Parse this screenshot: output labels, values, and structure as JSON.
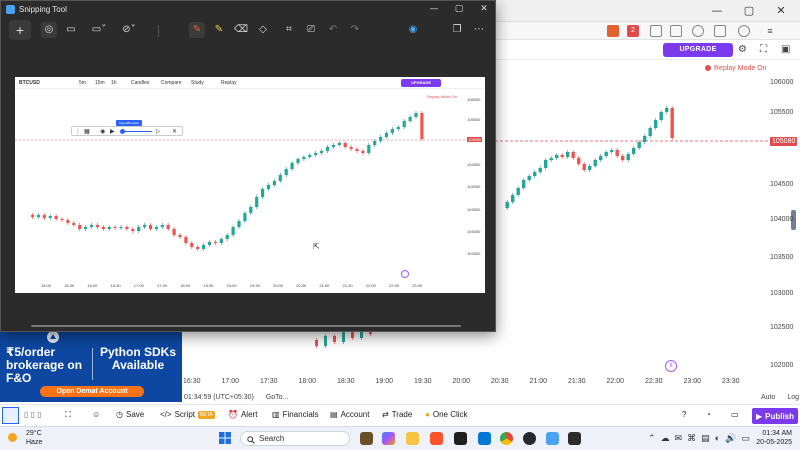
{
  "browser": {
    "tab_count_badge": "2"
  },
  "tradingview": {
    "upgrade_label": "UPGRADE",
    "replay_mode_label": "Replay Mode On",
    "current_price_tag": "105080",
    "y_axis_labels": [
      "106000",
      "105500",
      "105080",
      "104500",
      "104000",
      "103500",
      "103000",
      "102500",
      "102000"
    ],
    "x_axis_labels": [
      "16:30",
      "17:00",
      "17:30",
      "18:00",
      "18:30",
      "19:00",
      "19:30",
      "20:00",
      "20:30",
      "21:00",
      "21:30",
      "22:00",
      "22:30",
      "23:00",
      "23:30"
    ],
    "time_display": "01:34:59 (UTC+05:30)",
    "goto_label": "GoTo...",
    "auto_label": "Auto",
    "log_label": "Log",
    "bottom_toolbar": {
      "save": "Save",
      "script": "Script",
      "script_badge": "BETA",
      "alert": "Alert",
      "financials": "Financials",
      "account": "Account",
      "trade": "Trade",
      "one_click": "One Click",
      "publish": "Publish"
    },
    "candle_colors": {
      "up": "#26a69a",
      "down": "#ef5350"
    }
  },
  "ad": {
    "headline_left": "₹5/order brokerage on F&O",
    "headline_right": "Python SDKs Available",
    "cta": "Open Demat Account"
  },
  "snipping_tool": {
    "title": "Snipping Tool",
    "inner": {
      "symbol": "BTCUSD",
      "interval": "5m",
      "tabs": [
        "5m",
        "15m",
        "1h",
        "Candles",
        "Compare",
        "Study",
        "Replay"
      ],
      "upgrade_label": "UPGRADE",
      "replay_mode_label": "Replay Mode On",
      "speed_tooltip": "Speed/Position",
      "price_tag": "105080",
      "y_axis_labels": [
        "106000",
        "105500",
        "105080",
        "104500",
        "104000",
        "103500",
        "103000",
        "102500"
      ],
      "x_axis_labels": [
        "15:00",
        "15:30",
        "16:00",
        "16:30",
        "17:00",
        "17:30",
        "18:00",
        "18:30",
        "19:00",
        "19:30",
        "20:00",
        "20:30",
        "21:00",
        "21:30",
        "22:00",
        "22:30",
        "23:30"
      ]
    }
  },
  "taskbar": {
    "temperature": "29°C",
    "weather": "Haze",
    "search_placeholder": "Search",
    "time": "01:34 AM",
    "date": "20-05-2025"
  }
}
